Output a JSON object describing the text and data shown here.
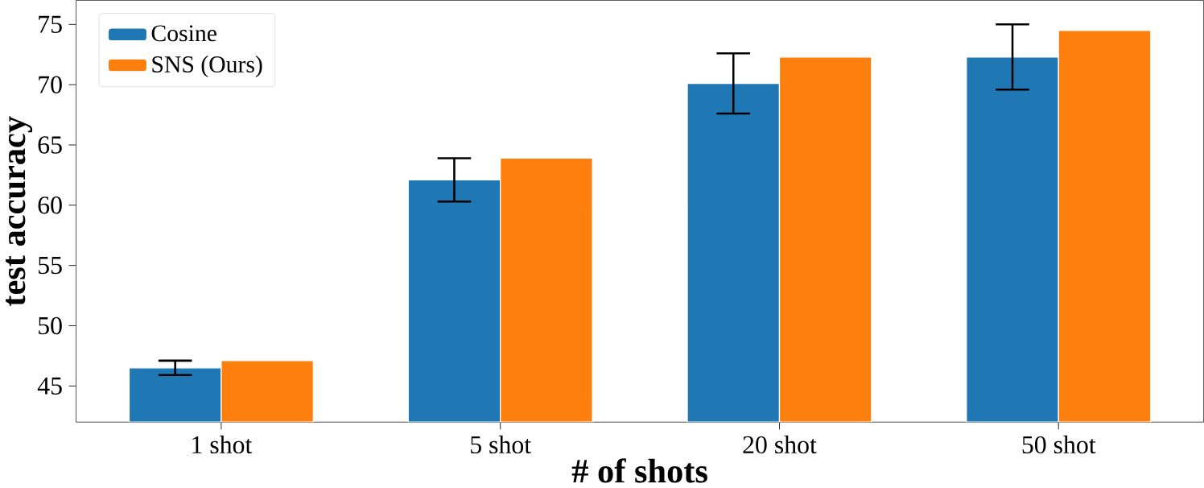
{
  "chart_data": {
    "type": "bar",
    "xlabel": "# of shots",
    "ylabel": "test accuracy",
    "categories": [
      "1 shot",
      "5 shot",
      "20 shot",
      "50 shot"
    ],
    "series": [
      {
        "name": "Cosine",
        "color": "#1f77b4",
        "values": [
          46.5,
          62.1,
          70.1,
          72.3
        ],
        "errors": [
          0.6,
          1.8,
          2.5,
          2.7
        ]
      },
      {
        "name": "SNS (Ours)",
        "color": "#ff7f0e",
        "values": [
          47.1,
          63.9,
          72.3,
          74.5
        ]
      }
    ],
    "ylim": [
      42,
      77
    ],
    "yticks": [
      45,
      50,
      55,
      60,
      65,
      70,
      75
    ],
    "grid": false,
    "legend": "top left"
  }
}
